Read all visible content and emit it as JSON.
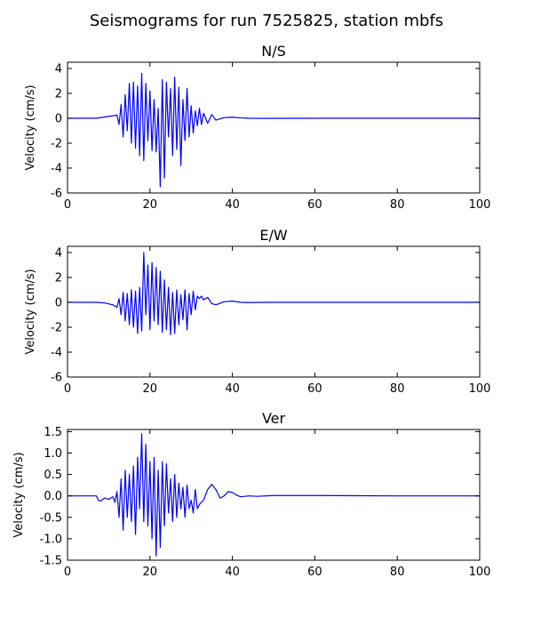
{
  "suptitle": "Seismograms for run 7525825, station mbfs",
  "colors": {
    "trace": "#0000ff",
    "axes": "#000000",
    "background": "#ffffff"
  },
  "chart_data": [
    {
      "type": "line",
      "title": "N/S",
      "xlabel": "",
      "ylabel": "Velocity (cm/s)",
      "xlim": [
        0,
        100
      ],
      "ylim": [
        -6,
        4.5
      ],
      "xticks": [
        0,
        20,
        40,
        60,
        80,
        100
      ],
      "yticks": [
        -6,
        -4,
        -2,
        0,
        2,
        4
      ],
      "grid": false,
      "series": [
        {
          "x": [
            0,
            7,
            10,
            12,
            12.5,
            13,
            13.5,
            14,
            14.5,
            15,
            15.5,
            16,
            16.5,
            17,
            17.5,
            18,
            18.5,
            19,
            19.5,
            20,
            20.5,
            21,
            21.5,
            22,
            22.5,
            23,
            23.5,
            24,
            24.5,
            25,
            25.5,
            26,
            26.5,
            27,
            27.5,
            28,
            28.5,
            29,
            29.5,
            30,
            30.5,
            31,
            31.5,
            32,
            32.5,
            33,
            34,
            35,
            36,
            38,
            40,
            42,
            44,
            48,
            60,
            80,
            99,
            100
          ],
          "y": [
            0,
            0,
            0.15,
            0.25,
            -0.5,
            1.1,
            -1.5,
            1.9,
            -1.0,
            2.8,
            -2.0,
            2.9,
            -2.4,
            2.6,
            -3.0,
            3.6,
            -3.4,
            2.8,
            -1.8,
            2.2,
            -2.6,
            1.5,
            -2.7,
            0.8,
            -5.5,
            3.1,
            -4.8,
            2.9,
            -1.5,
            2.4,
            -3.0,
            3.3,
            -2.5,
            2.5,
            -3.8,
            1.5,
            -1.8,
            2.4,
            -1.5,
            1.0,
            -1.2,
            0.6,
            -0.6,
            0.8,
            -0.5,
            0.4,
            -0.4,
            0.3,
            -0.15,
            0.05,
            0.08,
            0.03,
            0.0,
            -0.01,
            0.0,
            0.0,
            0.0,
            -0.03
          ]
        }
      ]
    },
    {
      "type": "line",
      "title": "E/W",
      "xlabel": "",
      "ylabel": "Velocity (cm/s)",
      "xlim": [
        0,
        100
      ],
      "ylim": [
        -6,
        4.5
      ],
      "xticks": [
        0,
        20,
        40,
        60,
        80,
        100
      ],
      "yticks": [
        -6,
        -4,
        -2,
        0,
        2,
        4
      ],
      "grid": false,
      "series": [
        {
          "x": [
            0,
            7,
            9,
            11,
            12,
            12.5,
            13,
            13.5,
            14,
            14.5,
            15,
            15.5,
            16,
            16.5,
            17,
            17.5,
            18,
            18.5,
            19,
            19.5,
            20,
            20.5,
            21,
            21.5,
            22,
            22.5,
            23,
            23.5,
            24,
            24.5,
            25,
            25.5,
            26,
            26.5,
            27,
            27.5,
            28,
            28.5,
            29,
            29.5,
            30,
            30.5,
            31,
            31.5,
            32,
            32.5,
            33,
            34,
            35,
            36,
            38,
            40,
            42,
            44,
            48,
            60,
            80,
            100
          ],
          "y": [
            0,
            0,
            -0.05,
            -0.2,
            -0.4,
            0.3,
            -1.0,
            0.8,
            -1.5,
            0.7,
            -1.8,
            1.0,
            -2.0,
            0.9,
            -2.5,
            1.2,
            -2.3,
            4.0,
            -1.0,
            3.0,
            -2.2,
            3.2,
            -1.5,
            2.8,
            -1.8,
            2.5,
            -2.4,
            1.8,
            -2.2,
            1.2,
            -2.6,
            0.8,
            -2.5,
            1.0,
            -1.8,
            0.6,
            -1.4,
            1.0,
            -2.2,
            0.7,
            -1.0,
            0.9,
            -0.6,
            0.5,
            0.3,
            0.5,
            0.2,
            0.4,
            -0.1,
            -0.2,
            0.05,
            0.1,
            0.0,
            -0.02,
            0.0,
            0.0,
            0.0,
            0.0
          ]
        }
      ]
    },
    {
      "type": "line",
      "title": "Ver",
      "xlabel": "",
      "ylabel": "Velocity (cm/s)",
      "xlim": [
        0,
        100
      ],
      "ylim": [
        -1.5,
        1.55
      ],
      "xticks": [
        0,
        20,
        40,
        60,
        80,
        100
      ],
      "yticks": [
        -1.5,
        -1.0,
        -0.5,
        0.0,
        0.5,
        1.0,
        1.5
      ],
      "grid": false,
      "series": [
        {
          "x": [
            0,
            7,
            7.5,
            8,
            9,
            10,
            11,
            11.5,
            12,
            12.5,
            13,
            13.5,
            14,
            14.5,
            15,
            15.5,
            16,
            16.5,
            17,
            17.5,
            18,
            18.5,
            19,
            19.5,
            20,
            20.5,
            21,
            21.5,
            22,
            22.5,
            23,
            23.5,
            24,
            24.5,
            25,
            25.5,
            26,
            26.5,
            27,
            27.5,
            28,
            28.5,
            29,
            29.5,
            30,
            30.5,
            31,
            31.5,
            32,
            33,
            34,
            35,
            36,
            37,
            38,
            39,
            40,
            41,
            42,
            44,
            46,
            50,
            60,
            80,
            100
          ],
          "y": [
            0,
            0,
            -0.1,
            -0.12,
            -0.05,
            -0.08,
            -0.02,
            -0.15,
            0.1,
            -0.5,
            0.4,
            -0.8,
            0.6,
            -0.5,
            0.5,
            -0.6,
            0.7,
            -0.9,
            0.9,
            -0.3,
            1.45,
            -0.6,
            1.2,
            -0.7,
            0.8,
            -1.0,
            0.9,
            -1.4,
            0.6,
            -1.2,
            0.8,
            -0.7,
            0.75,
            -0.4,
            0.4,
            -0.6,
            0.5,
            -0.5,
            0.3,
            -0.3,
            0.2,
            -0.5,
            0.25,
            -0.3,
            -0.1,
            -0.4,
            0.15,
            -0.3,
            -0.2,
            -0.1,
            0.15,
            0.27,
            0.15,
            -0.05,
            0.0,
            0.1,
            0.08,
            0.02,
            -0.02,
            0.0,
            -0.01,
            0.01,
            0.01,
            0.0,
            0.0
          ]
        }
      ]
    }
  ]
}
